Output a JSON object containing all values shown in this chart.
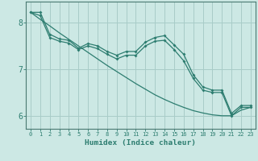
{
  "x": [
    0,
    1,
    2,
    3,
    4,
    5,
    6,
    7,
    8,
    9,
    10,
    11,
    12,
    13,
    14,
    15,
    16,
    17,
    18,
    19,
    20,
    21,
    22,
    23
  ],
  "y_line1": [
    8.22,
    8.22,
    7.75,
    7.65,
    7.62,
    7.45,
    7.55,
    7.5,
    7.38,
    7.3,
    7.38,
    7.38,
    7.58,
    7.68,
    7.72,
    7.52,
    7.32,
    6.88,
    6.62,
    6.55,
    6.55,
    6.05,
    6.22,
    6.22
  ],
  "y_line2": [
    8.22,
    8.15,
    7.68,
    7.6,
    7.56,
    7.42,
    7.5,
    7.44,
    7.32,
    7.22,
    7.3,
    7.3,
    7.5,
    7.6,
    7.62,
    7.42,
    7.18,
    6.8,
    6.55,
    6.5,
    6.5,
    6.0,
    6.18,
    6.18
  ],
  "y_trend": [
    8.22,
    8.07,
    7.93,
    7.78,
    7.64,
    7.5,
    7.36,
    7.22,
    7.08,
    6.95,
    6.82,
    6.69,
    6.57,
    6.45,
    6.35,
    6.26,
    6.18,
    6.11,
    6.06,
    6.02,
    6.0,
    6.0,
    6.12,
    6.18
  ],
  "color_main": "#2d7d70",
  "background": "#cce8e4",
  "grid_color": "#a8ccc8",
  "axis_color": "#4a7a72",
  "xlabel": "Humidex (Indice chaleur)",
  "ylim_min": 5.72,
  "ylim_max": 8.45,
  "xlim_min": -0.5,
  "xlim_max": 23.5,
  "yticks": [
    6,
    7,
    8
  ],
  "xticks": [
    0,
    1,
    2,
    3,
    4,
    5,
    6,
    7,
    8,
    9,
    10,
    11,
    12,
    13,
    14,
    15,
    16,
    17,
    18,
    19,
    20,
    21,
    22,
    23
  ]
}
